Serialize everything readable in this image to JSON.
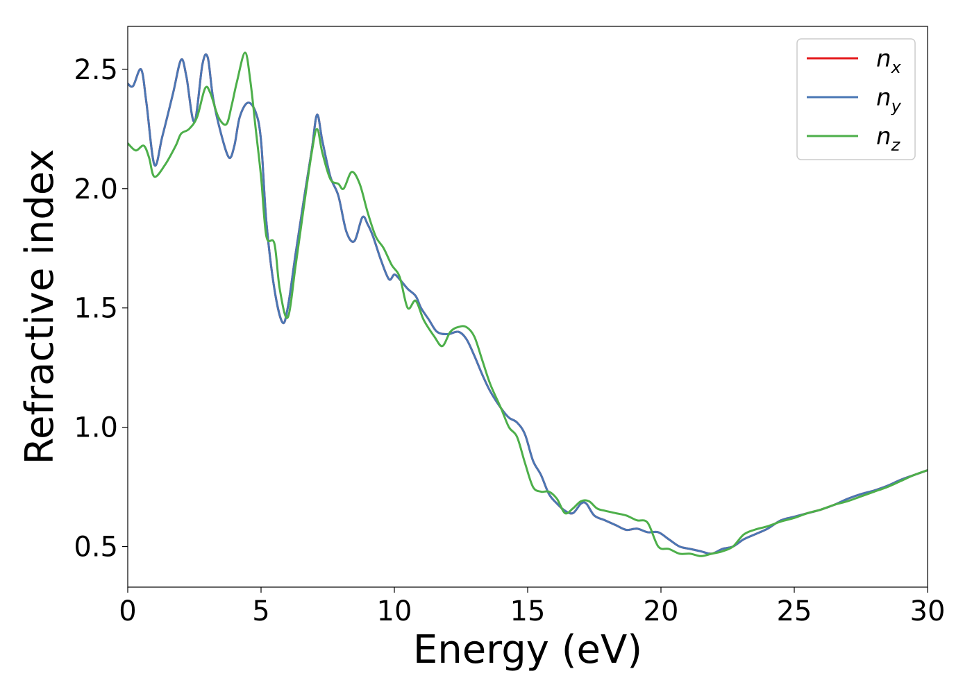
{
  "chart_data": {
    "type": "line",
    "title": "",
    "xlabel": "Energy (eV)",
    "ylabel": "Refractive index",
    "xlim": [
      0,
      30
    ],
    "ylim": [
      0.33,
      2.68
    ],
    "xticks": [
      0,
      5,
      10,
      15,
      20,
      25,
      30
    ],
    "xtick_labels": [
      "0",
      "5",
      "10",
      "15",
      "20",
      "25",
      "30"
    ],
    "yticks": [
      0.5,
      1.0,
      1.5,
      2.0,
      2.5
    ],
    "ytick_labels": [
      "0.5",
      "1.0",
      "1.5",
      "2.0",
      "2.5"
    ],
    "grid": false,
    "legend_position": "top-right",
    "series": [
      {
        "name": "n",
        "subscript": "x",
        "color": "#e41a1c",
        "x": [
          0,
          0.2,
          0.5,
          0.7,
          1.0,
          1.3,
          1.7,
          2.0,
          2.2,
          2.5,
          2.8,
          3.0,
          3.2,
          3.5,
          3.8,
          4.0,
          4.2,
          4.5,
          4.8,
          5.0,
          5.2,
          5.5,
          5.8,
          6.0,
          6.3,
          6.6,
          6.9,
          7.1,
          7.3,
          7.6,
          7.9,
          8.2,
          8.5,
          8.8,
          9.0,
          9.2,
          9.5,
          9.8,
          10.0,
          10.2,
          10.5,
          10.8,
          11.0,
          11.3,
          11.6,
          12.0,
          12.4,
          12.7,
          13.0,
          13.3,
          13.6,
          14.0,
          14.3,
          14.6,
          14.9,
          15.2,
          15.5,
          15.8,
          16.1,
          16.4,
          16.7,
          17.0,
          17.2,
          17.5,
          17.9,
          18.3,
          18.7,
          19.1,
          19.5,
          19.9,
          20.3,
          20.7,
          21.1,
          21.5,
          21.9,
          22.3,
          22.7,
          23.1,
          23.5,
          24.0,
          24.5,
          25.0,
          25.5,
          26.0,
          26.5,
          27.0,
          27.5,
          28.0,
          28.5,
          29.0,
          29.5,
          30.0
        ],
        "y": [
          2.44,
          2.43,
          2.5,
          2.36,
          2.1,
          2.22,
          2.4,
          2.54,
          2.47,
          2.28,
          2.52,
          2.55,
          2.38,
          2.23,
          2.13,
          2.18,
          2.3,
          2.36,
          2.32,
          2.2,
          1.86,
          1.58,
          1.44,
          1.5,
          1.73,
          1.95,
          2.16,
          2.31,
          2.2,
          2.05,
          1.97,
          1.82,
          1.78,
          1.88,
          1.85,
          1.8,
          1.7,
          1.62,
          1.64,
          1.62,
          1.58,
          1.55,
          1.5,
          1.45,
          1.4,
          1.39,
          1.4,
          1.37,
          1.3,
          1.22,
          1.15,
          1.08,
          1.04,
          1.02,
          0.97,
          0.86,
          0.8,
          0.72,
          0.68,
          0.65,
          0.64,
          0.68,
          0.68,
          0.63,
          0.61,
          0.59,
          0.57,
          0.575,
          0.56,
          0.56,
          0.53,
          0.5,
          0.49,
          0.48,
          0.47,
          0.49,
          0.5,
          0.53,
          0.55,
          0.575,
          0.61,
          0.625,
          0.64,
          0.655,
          0.675,
          0.7,
          0.72,
          0.735,
          0.755,
          0.78,
          0.8,
          0.82
        ]
      },
      {
        "name": "n",
        "subscript": "y",
        "color": "#4a77b4",
        "x": [
          0,
          0.2,
          0.5,
          0.7,
          1.0,
          1.3,
          1.7,
          2.0,
          2.2,
          2.5,
          2.8,
          3.0,
          3.2,
          3.5,
          3.8,
          4.0,
          4.2,
          4.5,
          4.8,
          5.0,
          5.2,
          5.5,
          5.8,
          6.0,
          6.3,
          6.6,
          6.9,
          7.1,
          7.3,
          7.6,
          7.9,
          8.2,
          8.5,
          8.8,
          9.0,
          9.2,
          9.5,
          9.8,
          10.0,
          10.2,
          10.5,
          10.8,
          11.0,
          11.3,
          11.6,
          12.0,
          12.4,
          12.7,
          13.0,
          13.3,
          13.6,
          14.0,
          14.3,
          14.6,
          14.9,
          15.2,
          15.5,
          15.8,
          16.1,
          16.4,
          16.7,
          17.0,
          17.2,
          17.5,
          17.9,
          18.3,
          18.7,
          19.1,
          19.5,
          19.9,
          20.3,
          20.7,
          21.1,
          21.5,
          21.9,
          22.3,
          22.7,
          23.1,
          23.5,
          24.0,
          24.5,
          25.0,
          25.5,
          26.0,
          26.5,
          27.0,
          27.5,
          28.0,
          28.5,
          29.0,
          29.5,
          30.0
        ],
        "y": [
          2.44,
          2.43,
          2.5,
          2.36,
          2.1,
          2.22,
          2.4,
          2.54,
          2.47,
          2.28,
          2.52,
          2.55,
          2.38,
          2.23,
          2.13,
          2.18,
          2.3,
          2.36,
          2.32,
          2.2,
          1.86,
          1.58,
          1.44,
          1.5,
          1.73,
          1.95,
          2.16,
          2.31,
          2.2,
          2.05,
          1.97,
          1.82,
          1.78,
          1.88,
          1.85,
          1.8,
          1.7,
          1.62,
          1.64,
          1.62,
          1.58,
          1.55,
          1.5,
          1.45,
          1.4,
          1.39,
          1.4,
          1.37,
          1.3,
          1.22,
          1.15,
          1.08,
          1.04,
          1.02,
          0.97,
          0.86,
          0.8,
          0.72,
          0.68,
          0.65,
          0.64,
          0.68,
          0.68,
          0.63,
          0.61,
          0.59,
          0.57,
          0.575,
          0.56,
          0.56,
          0.53,
          0.5,
          0.49,
          0.48,
          0.47,
          0.49,
          0.5,
          0.53,
          0.55,
          0.575,
          0.61,
          0.625,
          0.64,
          0.655,
          0.675,
          0.7,
          0.72,
          0.735,
          0.755,
          0.78,
          0.8,
          0.82
        ]
      },
      {
        "name": "n",
        "subscript": "z",
        "color": "#4daf4a",
        "x": [
          0,
          0.3,
          0.6,
          0.8,
          1.0,
          1.4,
          1.8,
          2.0,
          2.3,
          2.6,
          2.9,
          3.1,
          3.4,
          3.7,
          3.9,
          4.1,
          4.4,
          4.6,
          4.8,
          5.0,
          5.2,
          5.5,
          5.7,
          6.0,
          6.3,
          6.6,
          6.9,
          7.1,
          7.3,
          7.6,
          7.9,
          8.1,
          8.4,
          8.7,
          9.0,
          9.3,
          9.6,
          9.9,
          10.2,
          10.5,
          10.8,
          11.1,
          11.5,
          11.8,
          12.1,
          12.4,
          12.7,
          13.0,
          13.3,
          13.6,
          14.0,
          14.3,
          14.6,
          14.9,
          15.2,
          15.5,
          15.8,
          16.1,
          16.4,
          16.7,
          17.0,
          17.3,
          17.6,
          17.9,
          18.3,
          18.7,
          19.1,
          19.5,
          19.9,
          20.3,
          20.7,
          21.1,
          21.5,
          21.9,
          22.3,
          22.7,
          23.1,
          23.5,
          24.0,
          24.5,
          25.0,
          25.5,
          26.0,
          26.5,
          27.0,
          27.5,
          28.0,
          28.5,
          29.0,
          29.5,
          30.0
        ],
        "y": [
          2.19,
          2.16,
          2.18,
          2.13,
          2.05,
          2.1,
          2.18,
          2.23,
          2.25,
          2.3,
          2.42,
          2.4,
          2.3,
          2.27,
          2.35,
          2.45,
          2.57,
          2.45,
          2.25,
          2.05,
          1.8,
          1.77,
          1.58,
          1.46,
          1.68,
          1.92,
          2.15,
          2.25,
          2.15,
          2.04,
          2.02,
          2.0,
          2.07,
          2.02,
          1.9,
          1.8,
          1.75,
          1.68,
          1.63,
          1.5,
          1.53,
          1.45,
          1.38,
          1.34,
          1.4,
          1.42,
          1.42,
          1.38,
          1.28,
          1.18,
          1.08,
          1.0,
          0.96,
          0.85,
          0.75,
          0.73,
          0.73,
          0.7,
          0.64,
          0.66,
          0.69,
          0.69,
          0.66,
          0.65,
          0.64,
          0.63,
          0.61,
          0.6,
          0.5,
          0.49,
          0.47,
          0.47,
          0.46,
          0.47,
          0.48,
          0.5,
          0.55,
          0.57,
          0.585,
          0.605,
          0.62,
          0.64,
          0.655,
          0.675,
          0.69,
          0.71,
          0.73,
          0.75,
          0.775,
          0.8,
          0.82
        ]
      }
    ]
  }
}
